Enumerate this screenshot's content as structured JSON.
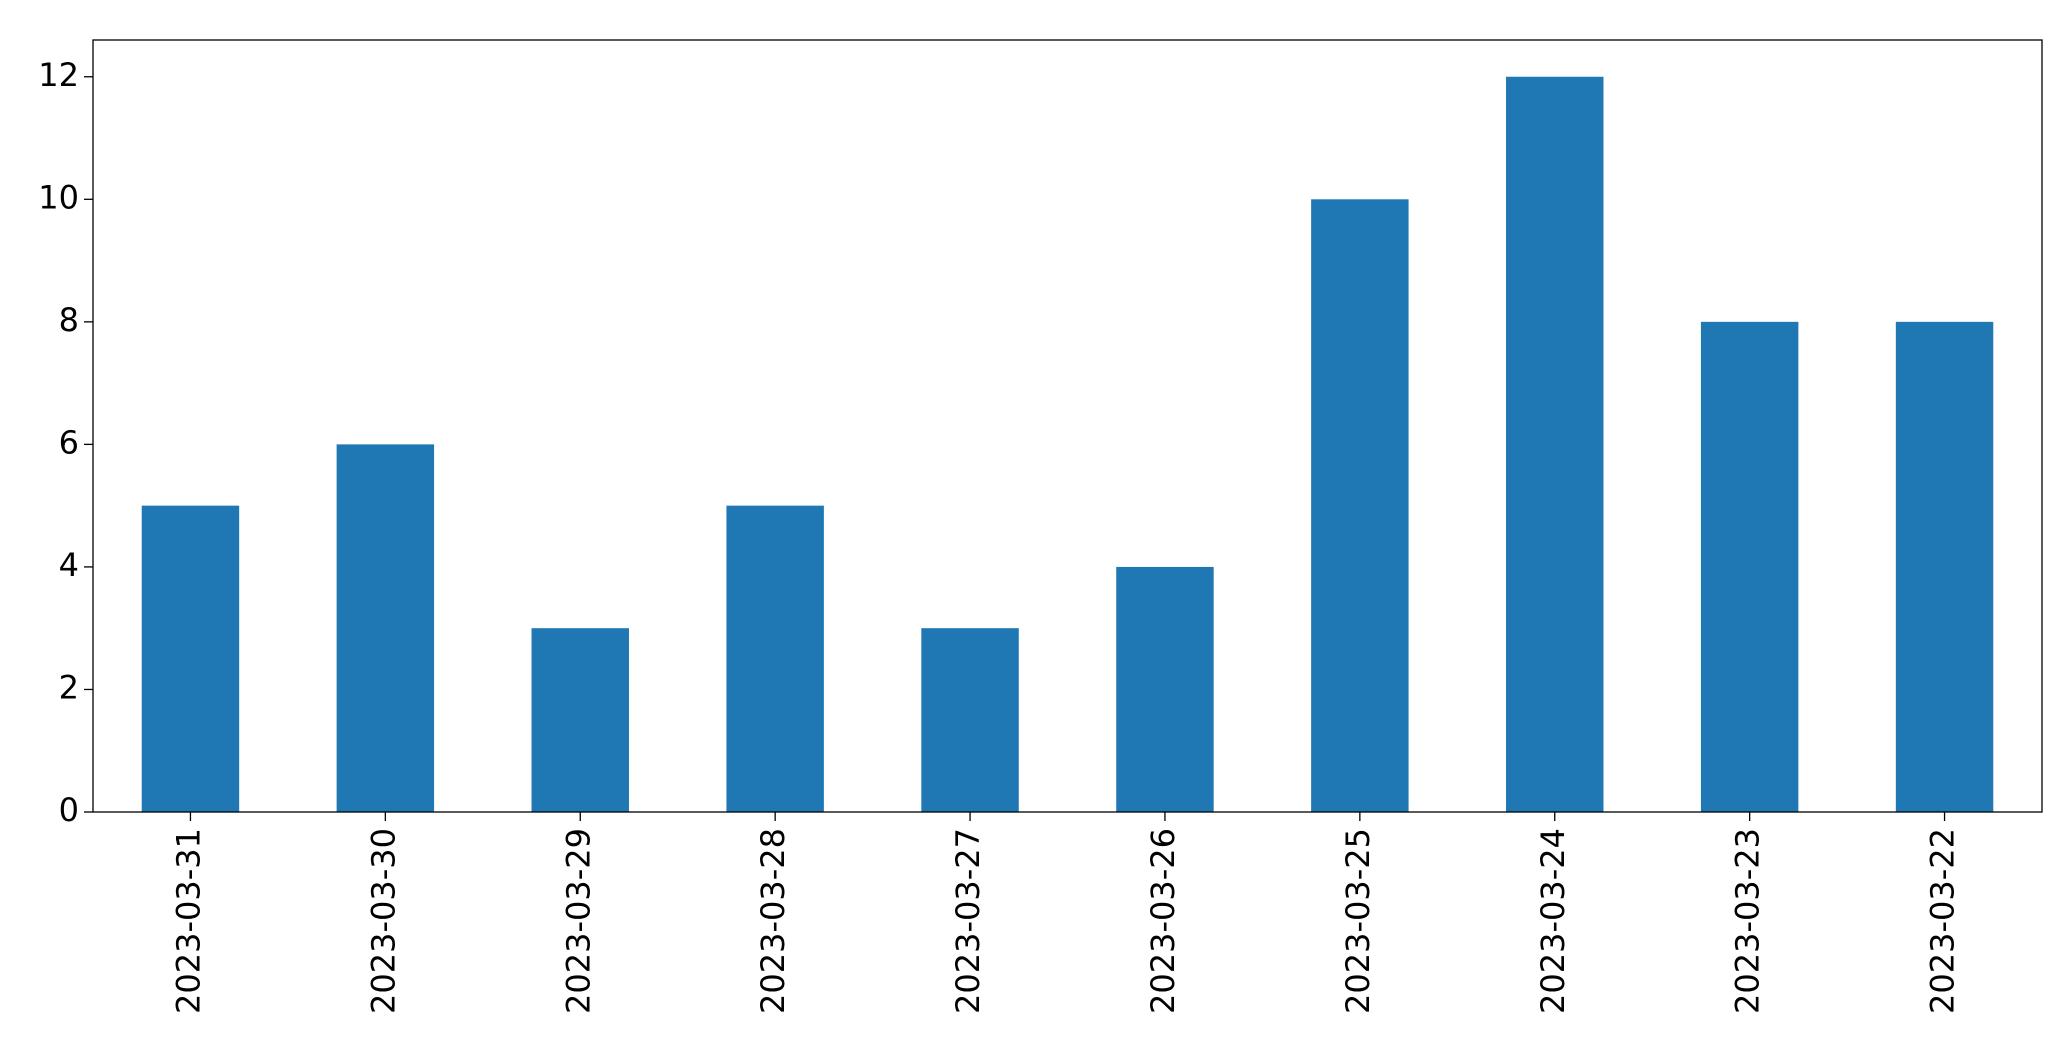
{
  "chart_data": {
    "type": "bar",
    "categories": [
      "2023-03-31",
      "2023-03-30",
      "2023-03-29",
      "2023-03-28",
      "2023-03-27",
      "2023-03-26",
      "2023-03-25",
      "2023-03-24",
      "2023-03-23",
      "2023-03-22"
    ],
    "values": [
      5,
      6,
      3,
      5,
      3,
      4,
      10,
      12,
      8,
      8
    ],
    "color": "#1f77b4",
    "ylim": [
      0,
      12.6
    ],
    "yticks": [
      0,
      2,
      4,
      6,
      8,
      10,
      12
    ],
    "grid": false
  }
}
